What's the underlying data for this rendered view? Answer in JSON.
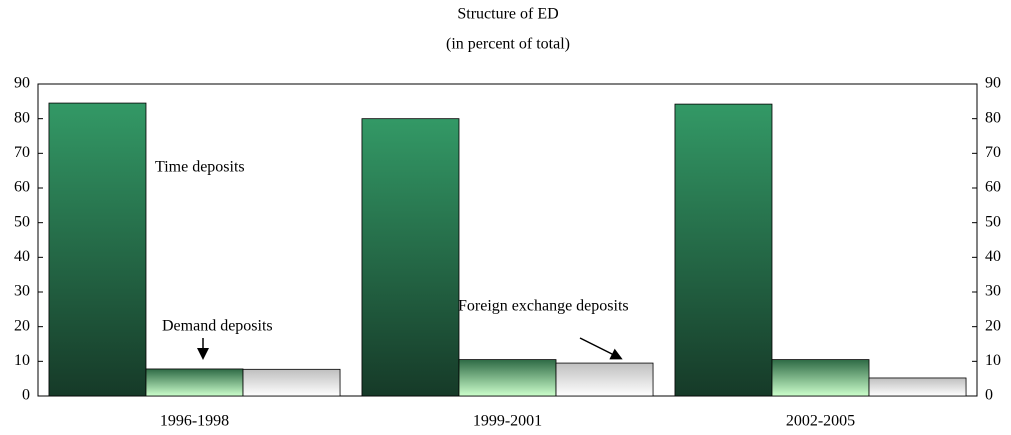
{
  "chart_data": {
    "type": "bar",
    "title": "Structure of ED",
    "subtitle": "(in percent of total)",
    "categories": [
      "1996-1998",
      "1999-2001",
      "2002-2005"
    ],
    "series": [
      {
        "name": "Time deposits",
        "color": "#339966",
        "values": [
          84.5,
          80,
          84.2
        ]
      },
      {
        "name": "Demand deposits",
        "color": "#ccffcc",
        "values": [
          7.8,
          10.5,
          10.5
        ]
      },
      {
        "name": "Foreign exchange deposits",
        "color": "#ffffff",
        "values": [
          7.7,
          9.5,
          5.2
        ]
      }
    ],
    "ylim": [
      0,
      90
    ],
    "yticks": [
      0,
      10,
      20,
      30,
      40,
      50,
      60,
      70,
      80,
      90
    ],
    "y2lim": [
      0,
      90
    ],
    "y2ticks": [
      0,
      10,
      20,
      30,
      40,
      50,
      60,
      70,
      80,
      90
    ],
    "grid": false
  }
}
